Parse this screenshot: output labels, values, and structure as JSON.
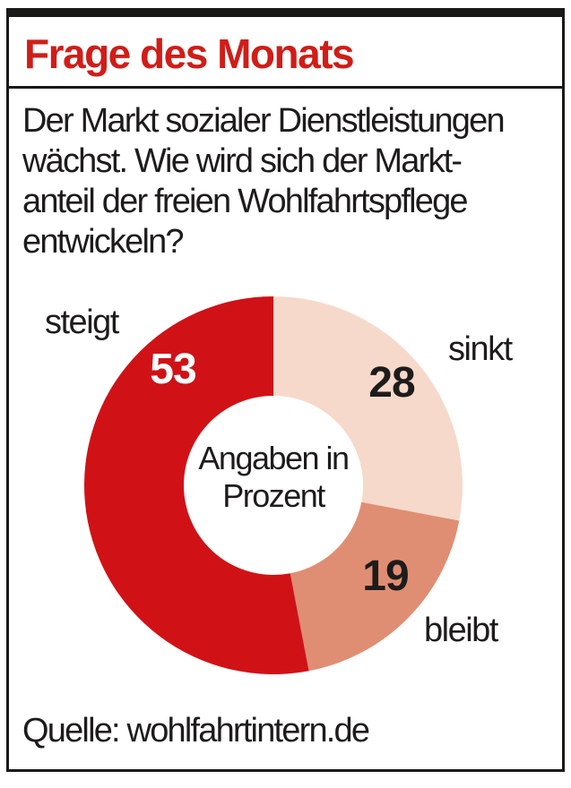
{
  "header": {
    "title": "Frage des Monats",
    "title_color": "#d01d18"
  },
  "question": {
    "lines": [
      "Der Markt sozialer Dienstleistungen",
      "wächst. Wie wird sich der Markt-",
      "anteil der freien Wohlfahrtspflege",
      "entwickeln?"
    ]
  },
  "chart_data": {
    "type": "pie",
    "variant": "donut",
    "title": "Frage des Monats",
    "unit_note": "Angaben in Prozent",
    "start_angle_deg": 0,
    "direction": "clockwise",
    "segments": [
      {
        "label": "sinkt",
        "value": 28,
        "color": "#f6d9ca",
        "value_color": "#1d1c1b"
      },
      {
        "label": "bleibt",
        "value": 19,
        "color": "#e08e73",
        "value_color": "#1d1c1b"
      },
      {
        "label": "steigt",
        "value": 53,
        "color": "#d01217",
        "value_color": "#ffffff"
      }
    ],
    "center_label": {
      "line1": "Angaben in",
      "line2": "Prozent"
    }
  },
  "footer": {
    "source": "Quelle: wohlfahrtintern.de"
  },
  "frame_color": "#191917",
  "text_color": "#1d1c1b"
}
